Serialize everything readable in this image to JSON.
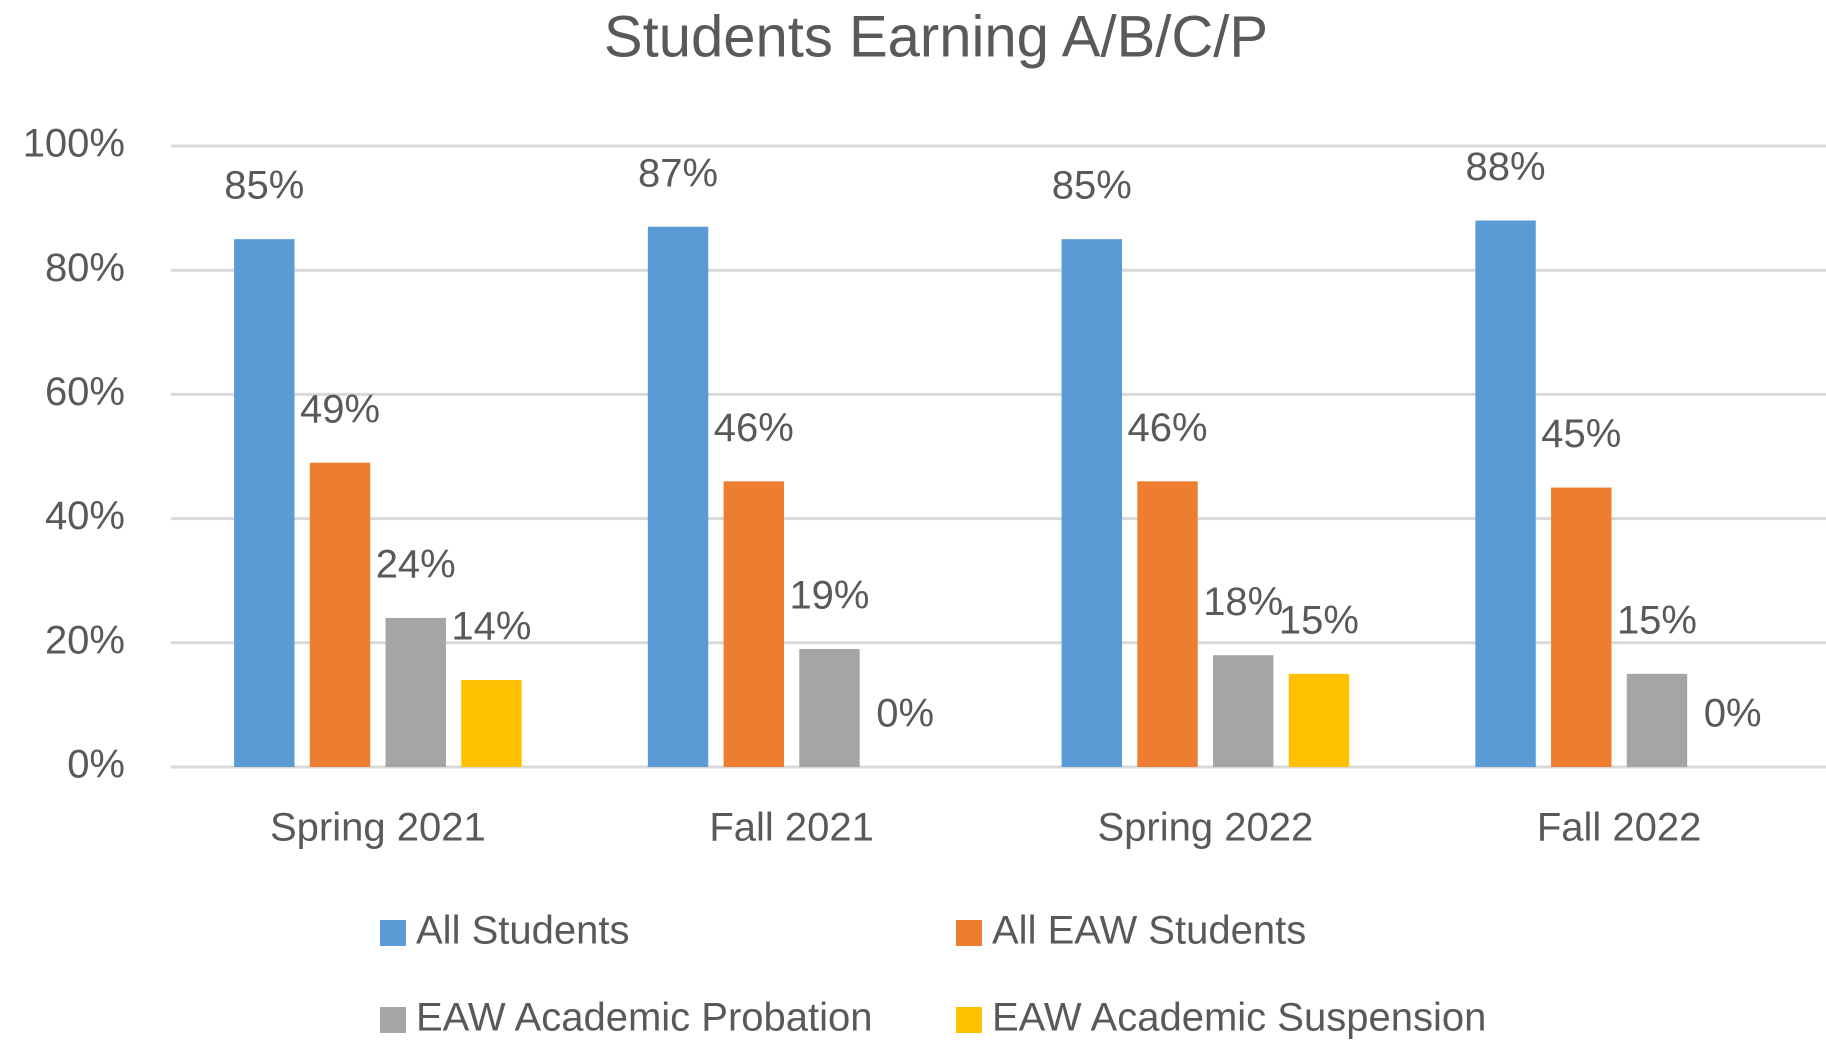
{
  "chart_data": {
    "type": "bar",
    "title": "Students Earning A/B/C/P",
    "categories": [
      "Spring 2021",
      "Fall 2021",
      "Spring 2022",
      "Fall 2022"
    ],
    "series": [
      {
        "name": "All Students",
        "color": "#5b9bd5",
        "values": [
          85,
          87,
          85,
          88
        ],
        "value_labels": [
          "85%",
          "87%",
          "85%",
          "88%"
        ]
      },
      {
        "name": "All EAW Students",
        "color": "#ed7d31",
        "values": [
          49,
          46,
          46,
          45
        ],
        "value_labels": [
          "49%",
          "46%",
          "46%",
          "45%"
        ]
      },
      {
        "name": "EAW Academic Probation",
        "color": "#a5a5a5",
        "values": [
          24,
          19,
          18,
          15
        ],
        "value_labels": [
          "24%",
          "19%",
          "18%",
          "15%"
        ]
      },
      {
        "name": "EAW Academic Suspension",
        "color": "#ffc000",
        "values": [
          14,
          0,
          15,
          0
        ],
        "value_labels": [
          "14%",
          "0%",
          "15%",
          "0%"
        ]
      }
    ],
    "ylim": [
      0,
      100
    ],
    "yticks": [
      {
        "value": 0,
        "label": "0%"
      },
      {
        "value": 20,
        "label": "20%"
      },
      {
        "value": 40,
        "label": "40%"
      },
      {
        "value": 60,
        "label": "60%"
      },
      {
        "value": 80,
        "label": "80%"
      },
      {
        "value": 100,
        "label": "100%"
      }
    ],
    "grid": true,
    "legend": "bottom"
  }
}
